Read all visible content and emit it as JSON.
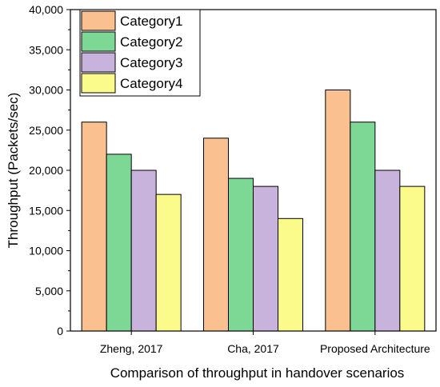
{
  "chart_data": {
    "type": "bar",
    "title": "",
    "xlabel": "Comparison of throughput in handover scenarios",
    "ylabel": "Throughput (Packets/sec)",
    "ylim": [
      0,
      40000
    ],
    "yticks": [
      "0",
      "5,000",
      "10,000",
      "15,000",
      "20,000",
      "25,000",
      "30,000",
      "35,000",
      "40,000"
    ],
    "categories": [
      "Zheng, 2017",
      "Cha, 2017",
      "Proposed Architecture"
    ],
    "series": [
      {
        "name": "Category1",
        "color": "#FBC08F",
        "values": [
          26000,
          24000,
          30000
        ]
      },
      {
        "name": "Category2",
        "color": "#7ED895",
        "values": [
          22000,
          19000,
          26000
        ]
      },
      {
        "name": "Category3",
        "color": "#C8B3DD",
        "values": [
          20000,
          18000,
          20000
        ]
      },
      {
        "name": "Category4",
        "color": "#FBFB8C",
        "values": [
          17000,
          14000,
          18000
        ]
      }
    ],
    "legend_position": "top-left",
    "grid": false
  }
}
